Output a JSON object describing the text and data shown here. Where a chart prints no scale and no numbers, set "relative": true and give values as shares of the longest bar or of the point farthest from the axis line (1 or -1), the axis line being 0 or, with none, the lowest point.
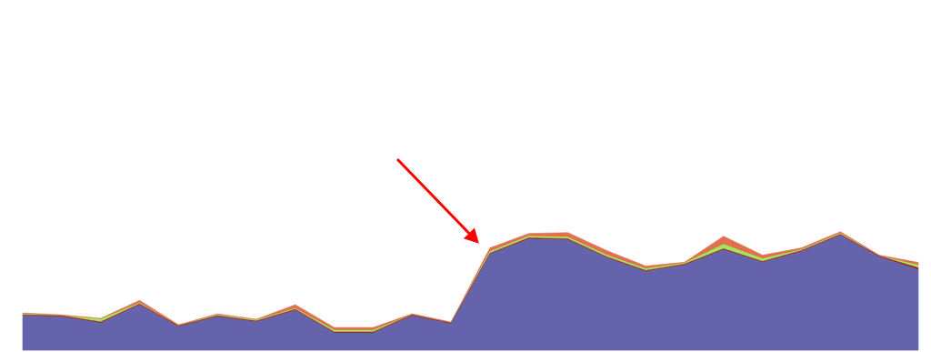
{
  "chart_data": {
    "type": "area",
    "stacked": true,
    "relative": true,
    "categories": [
      null,
      null,
      null,
      null,
      null,
      null,
      null,
      null,
      null,
      null,
      null,
      null,
      null,
      null,
      null,
      null,
      null,
      null,
      null,
      null,
      null,
      null,
      null,
      null
    ],
    "series": [
      {
        "color": "#6563ab",
        "values": [
          0.29,
          0.282,
          0.229,
          0.382,
          0.198,
          0.282,
          0.237,
          0.336,
          0.145,
          0.145,
          0.29,
          0.221,
          0.809,
          0.939,
          0.931,
          0.779,
          0.664,
          0.718,
          0.847,
          0.74,
          0.832,
          0.969,
          0.786,
          0.679
        ]
      },
      {
        "color": "#9b1c1c",
        "values": [
          0.008,
          0.008,
          0.008,
          0.008,
          0.008,
          0.008,
          0.008,
          0.008,
          0.008,
          0.008,
          0.008,
          0.008,
          0.008,
          0.008,
          0.008,
          0.008,
          0.008,
          0.008,
          0.008,
          0.008,
          0.008,
          0.008,
          0.008,
          0.015
        ]
      },
      {
        "color": "#9ee85a",
        "values": [
          0.008,
          0.0,
          0.023,
          0.008,
          0.0,
          0.008,
          0.008,
          0.008,
          0.015,
          0.015,
          0.0,
          0.0,
          0.015,
          0.015,
          0.015,
          0.015,
          0.015,
          0.008,
          0.038,
          0.023,
          0.008,
          0.008,
          0.0,
          0.023
        ]
      },
      {
        "color": "#e0704f",
        "values": [
          0.008,
          0.008,
          0.008,
          0.023,
          0.008,
          0.008,
          0.008,
          0.031,
          0.023,
          0.023,
          0.008,
          0.008,
          0.031,
          0.023,
          0.038,
          0.038,
          0.023,
          0.008,
          0.069,
          0.031,
          0.015,
          0.015,
          0.008,
          0.023
        ]
      }
    ]
  }
}
